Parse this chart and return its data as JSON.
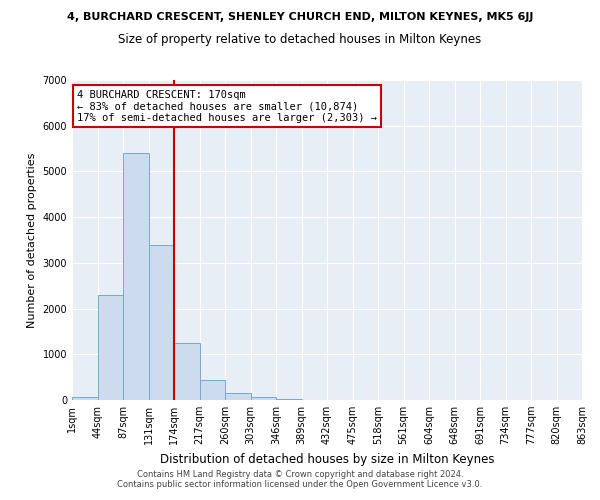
{
  "title_line1": "4, BURCHARD CRESCENT, SHENLEY CHURCH END, MILTON KEYNES, MK5 6JJ",
  "title_line2": "Size of property relative to detached houses in Milton Keynes",
  "xlabel": "Distribution of detached houses by size in Milton Keynes",
  "ylabel": "Number of detached properties",
  "footer_line1": "Contains HM Land Registry data © Crown copyright and database right 2024.",
  "footer_line2": "Contains public sector information licensed under the Open Government Licence v3.0.",
  "bin_labels": [
    "1sqm",
    "44sqm",
    "87sqm",
    "131sqm",
    "174sqm",
    "217sqm",
    "260sqm",
    "303sqm",
    "346sqm",
    "389sqm",
    "432sqm",
    "475sqm",
    "518sqm",
    "561sqm",
    "604sqm",
    "648sqm",
    "691sqm",
    "734sqm",
    "777sqm",
    "820sqm",
    "863sqm"
  ],
  "bar_values": [
    75,
    2300,
    5400,
    3400,
    1250,
    430,
    160,
    70,
    20,
    5,
    2,
    1,
    0,
    0,
    0,
    0,
    0,
    0,
    0,
    0
  ],
  "n_bins": 20,
  "property_size_bin": 4,
  "vline_color": "#cc0000",
  "bar_facecolor": "#ccdcee",
  "bar_edgecolor": "#7aa8cc",
  "annotation_text": "4 BURCHARD CRESCENT: 170sqm\n← 83% of detached houses are smaller (10,874)\n17% of semi-detached houses are larger (2,303) →",
  "annotation_box_edgecolor": "#cc0000",
  "plot_bg_color": "#e8eef5",
  "ylim": [
    0,
    7000
  ],
  "yticks": [
    0,
    1000,
    2000,
    3000,
    4000,
    5000,
    6000,
    7000
  ],
  "figsize": [
    6.0,
    5.0
  ],
  "dpi": 100
}
